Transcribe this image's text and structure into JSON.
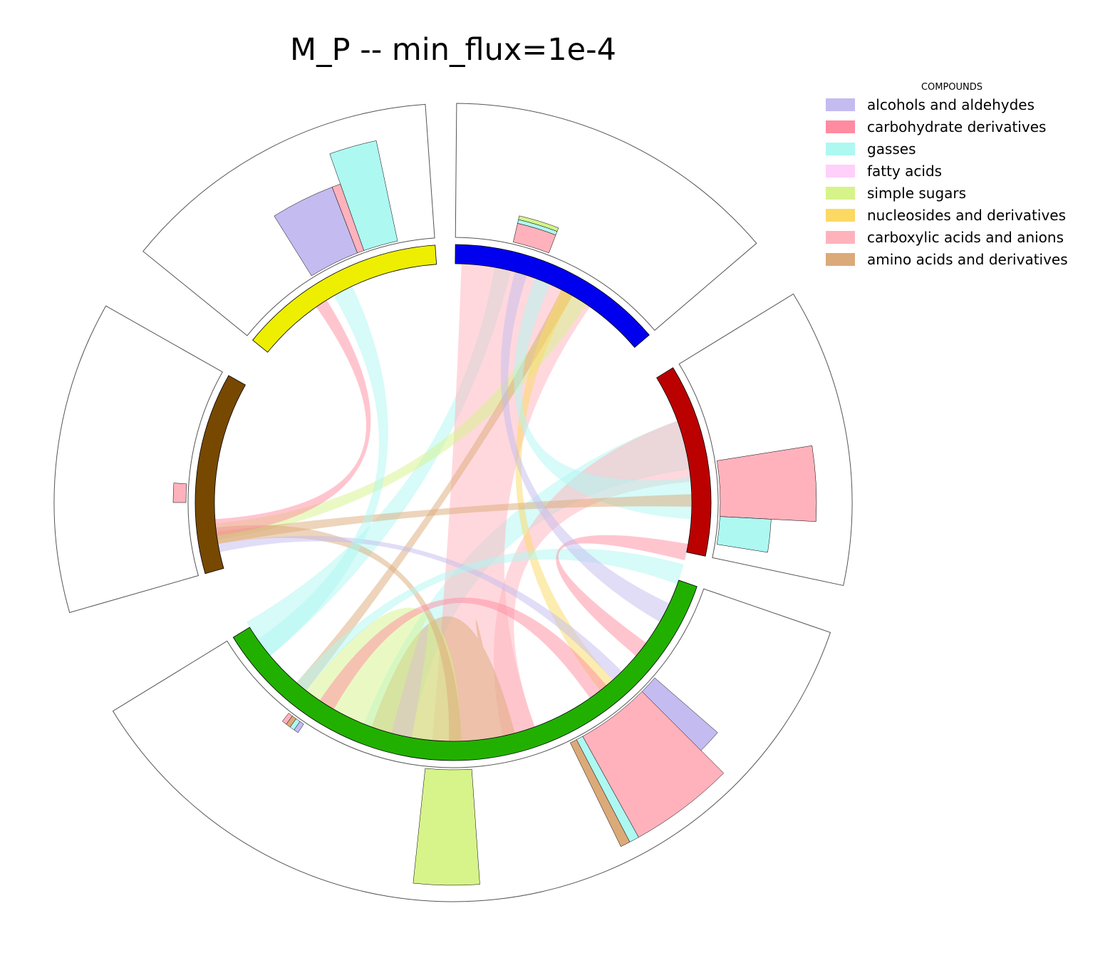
{
  "chart_data": {
    "type": "chord",
    "title": "M_P -- min_flux=1e-4",
    "legend": {
      "title": "COMPOUNDS",
      "placement": "top-right",
      "entries": [
        {
          "label": "alcohols and aldehydes",
          "color": "#c4bbf0"
        },
        {
          "label": "carbohydrate derivatives",
          "color": "#ff8ba0"
        },
        {
          "label": "gasses",
          "color": "#aef8f2"
        },
        {
          "label": "fatty acids",
          "color": "#ffd0fa"
        },
        {
          "label": "simple sugars",
          "color": "#d6f48a"
        },
        {
          "label": "nucleosides and derivatives",
          "color": "#fcd962"
        },
        {
          "label": "carboxylic acids and anions",
          "color": "#ffb2bc"
        },
        {
          "label": "amino acids and derivatives",
          "color": "#dcaa78"
        }
      ]
    },
    "segments": [
      {
        "color": "#0000ee",
        "label": ""
      },
      {
        "color": "#bb0000",
        "label": ""
      },
      {
        "color": "#22b000",
        "label": ""
      },
      {
        "color": "#774800",
        "label": ""
      },
      {
        "color": "#eeee00",
        "label": ""
      }
    ],
    "outer_histograms": [
      {
        "segment": 0,
        "bars": [
          {
            "compound": "carboxylic acids and anions",
            "value": 0.15
          },
          {
            "compound": "gasses",
            "value": 0.03
          },
          {
            "compound": "simple sugars",
            "value": 0.03
          }
        ]
      },
      {
        "segment": 1,
        "bars": [
          {
            "compound": "carboxylic acids and anions",
            "value": 0.75
          },
          {
            "compound": "gasses",
            "value": 0.4
          }
        ]
      },
      {
        "segment": 2,
        "bars": [
          {
            "compound": "alcohols and aldehydes",
            "value": 0.65
          },
          {
            "compound": "carboxylic acids and anions",
            "value": 0.9
          },
          {
            "compound": "gasses",
            "value": 0.9
          },
          {
            "compound": "amino acids and derivatives",
            "value": 0.9
          },
          {
            "compound": "simple sugars",
            "value": 0.9
          },
          {
            "compound": "alcohols and aldehydes",
            "value": 0.08
          },
          {
            "compound": "gasses",
            "value": 0.08
          },
          {
            "compound": "amino acids and derivatives",
            "value": 0.08
          },
          {
            "compound": "carboxylic acids and anions",
            "value": 0.08
          }
        ]
      },
      {
        "segment": 3,
        "bars": [
          {
            "compound": "carboxylic acids and anions",
            "value": 0.1
          }
        ]
      },
      {
        "segment": 4,
        "bars": [
          {
            "compound": "alcohols and aldehydes",
            "value": 0.55
          },
          {
            "compound": "carboxylic acids and anions",
            "value": 0.55
          },
          {
            "compound": "gasses",
            "value": 0.8
          }
        ]
      }
    ],
    "links": [
      {
        "from_segment": 1,
        "to_segment": 4,
        "compound": "gasses"
      },
      {
        "from_segment": 1,
        "to_segment": 2,
        "compound": "gasses"
      },
      {
        "from_segment": 4,
        "to_segment": 2,
        "compound": "carboxylic acids and anions"
      },
      {
        "from_segment": 1,
        "to_segment": 2,
        "compound": "carboxylic acids and anions"
      },
      {
        "from_segment": 2,
        "to_segment": 2,
        "compound": "amino acids and derivatives"
      },
      {
        "from_segment": 2,
        "to_segment": 2,
        "compound": "simple sugars"
      },
      {
        "from_segment": 0,
        "to_segment": 3,
        "compound": "simple sugars"
      },
      {
        "from_segment": 0,
        "to_segment": 2,
        "compound": "amino acids and derivatives"
      },
      {
        "from_segment": 0,
        "to_segment": 2,
        "compound": "nucleosides and derivatives"
      },
      {
        "from_segment": 0,
        "to_segment": 1,
        "compound": "gasses"
      },
      {
        "from_segment": 3,
        "to_segment": 1,
        "compound": "amino acids and derivatives"
      },
      {
        "from_segment": 3,
        "to_segment": 2,
        "compound": "amino acids and derivatives"
      },
      {
        "from_segment": 3,
        "to_segment": 2,
        "compound": "alcohols and aldehydes"
      },
      {
        "from_segment": 4,
        "to_segment": 3,
        "compound": "carbohydrate derivatives"
      },
      {
        "from_segment": 2,
        "to_segment": 2,
        "compound": "carbohydrate derivatives"
      },
      {
        "from_segment": 2,
        "to_segment": 1,
        "compound": "gasses"
      },
      {
        "from_segment": 1,
        "to_segment": 2,
        "compound": "carbohydrate derivatives"
      },
      {
        "from_segment": 0,
        "to_segment": 2,
        "compound": "alcohols and aldehydes"
      },
      {
        "from_segment": 4,
        "to_segment": 2,
        "compound": "gasses"
      }
    ]
  }
}
